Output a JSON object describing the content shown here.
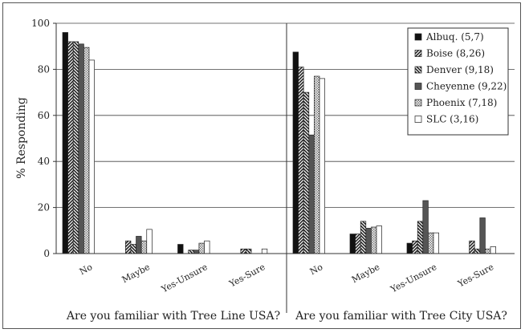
{
  "chart_data": {
    "type": "bar",
    "ylabel": "% Responding",
    "ylim": [
      0,
      100
    ],
    "yticks": [
      0,
      20,
      40,
      60,
      80,
      100
    ],
    "grid": true,
    "legend_position": "top-right",
    "categories": [
      "No",
      "Maybe",
      "Yes-Unsure",
      "Yes-Sure"
    ],
    "series_styles": [
      {
        "fill": "#111111",
        "pattern": "solid"
      },
      {
        "fill": "#333333",
        "pattern": "diag-fwd"
      },
      {
        "fill": "#333333",
        "pattern": "diag-back"
      },
      {
        "fill": "#555555",
        "pattern": "solid-grey"
      },
      {
        "fill": "#777777",
        "pattern": "checker"
      },
      {
        "fill": "#ffffff",
        "pattern": "white"
      }
    ],
    "panels": [
      {
        "xlabel": "Are you familiar with Tree Line USA?",
        "series": [
          {
            "name": "Albuq. (5,7)",
            "values": [
              96,
              0,
              4,
              0
            ]
          },
          {
            "name": "Boise (8,26)",
            "values": [
              92,
              5.5,
              0,
              2
            ]
          },
          {
            "name": "Denver (9,18)",
            "values": [
              92,
              4,
              1.5,
              2
            ]
          },
          {
            "name": "Cheyenne (9,22)",
            "values": [
              91,
              7.5,
              1.5,
              0
            ]
          },
          {
            "name": "Phoenix (7,18)",
            "values": [
              89.5,
              5.5,
              4.5,
              0
            ]
          },
          {
            "name": "SLC (3,16)",
            "values": [
              84,
              10.5,
              5.5,
              2
            ]
          }
        ]
      },
      {
        "xlabel": "Are you familiar with Tree City USA?",
        "series": [
          {
            "name": "Albuq. (5,7)",
            "values": [
              87.5,
              8.5,
              4.5,
              0
            ]
          },
          {
            "name": "Boise (8,26)",
            "values": [
              81,
              8.5,
              5.5,
              5.5
            ]
          },
          {
            "name": "Denver (9,18)",
            "values": [
              70,
              14,
              14,
              2
            ]
          },
          {
            "name": "Cheyenne (9,22)",
            "values": [
              51.5,
              11,
              23,
              15.5
            ]
          },
          {
            "name": "Phoenix (7,18)",
            "values": [
              77,
              11.5,
              9,
              2
            ]
          },
          {
            "name": "SLC (3,16)",
            "values": [
              76,
              12,
              9,
              3
            ]
          }
        ]
      }
    ]
  }
}
